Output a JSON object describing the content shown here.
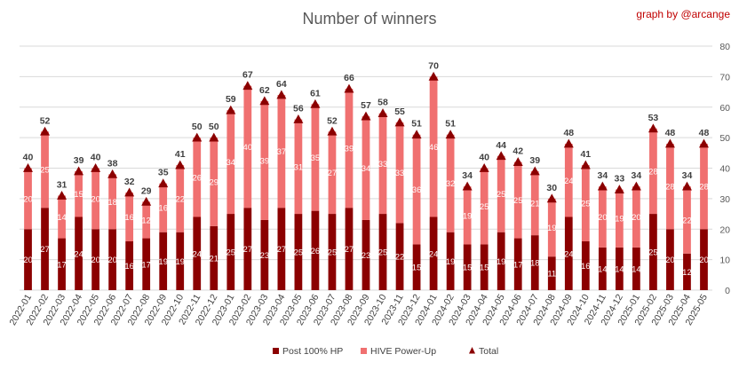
{
  "chart_data": {
    "type": "bar",
    "stacked": true,
    "title": "Number of winners",
    "credit": "graph by @arcange",
    "xlabel": "",
    "ylabel": "",
    "ylim": [
      0,
      80
    ],
    "yticks": [
      0,
      10,
      20,
      30,
      40,
      50,
      60,
      70,
      80
    ],
    "y_axis_position": "right",
    "grid": true,
    "legend_position": "bottom",
    "colors": {
      "post": "#8b0000",
      "powerup": "#f07070",
      "total": "#8b0000",
      "grid": "#d9d9d9"
    },
    "categories": [
      "2022-01",
      "2022-02",
      "2022-03",
      "2022-04",
      "2022-05",
      "2022-06",
      "2022-07",
      "2022-08",
      "2022-09",
      "2022-10",
      "2022-11",
      "2022-12",
      "2023-01",
      "2023-02",
      "2023-03",
      "2023-04",
      "2023-05",
      "2023-06",
      "2023-07",
      "2023-08",
      "2023-09",
      "2023-10",
      "2023-11",
      "2023-12",
      "2024-01",
      "2024-02",
      "2024-03",
      "2024-04",
      "2024-05",
      "2024-06",
      "2024-07",
      "2024-08",
      "2024-09",
      "2024-10",
      "2024-11",
      "2024-12",
      "2025-01",
      "2025-02",
      "2025-03",
      "2025-04",
      "2025-05"
    ],
    "series": [
      {
        "name": "Post 100% HP",
        "values": [
          20,
          27,
          17,
          24,
          20,
          20,
          16,
          17,
          19,
          19,
          24,
          21,
          25,
          27,
          23,
          27,
          25,
          26,
          25,
          27,
          23,
          25,
          22,
          15,
          24,
          19,
          15,
          15,
          19,
          17,
          18,
          11,
          24,
          16,
          14,
          14,
          14,
          25,
          20,
          12,
          20
        ]
      },
      {
        "name": "HIVE Power-Up",
        "values": [
          20,
          25,
          14,
          15,
          20,
          18,
          16,
          12,
          16,
          22,
          26,
          29,
          34,
          40,
          39,
          37,
          31,
          35,
          27,
          39,
          34,
          33,
          33,
          36,
          46,
          32,
          19,
          25,
          25,
          25,
          21,
          19,
          24,
          25,
          20,
          19,
          20,
          28,
          28,
          22,
          28
        ]
      }
    ],
    "total": {
      "name": "Total",
      "values": [
        40,
        52,
        31,
        39,
        40,
        38,
        32,
        29,
        35,
        41,
        50,
        50,
        59,
        67,
        62,
        64,
        56,
        61,
        52,
        66,
        57,
        58,
        55,
        51,
        70,
        51,
        34,
        40,
        44,
        42,
        39,
        30,
        48,
        41,
        34,
        33,
        34,
        53,
        48,
        34,
        48
      ]
    }
  }
}
